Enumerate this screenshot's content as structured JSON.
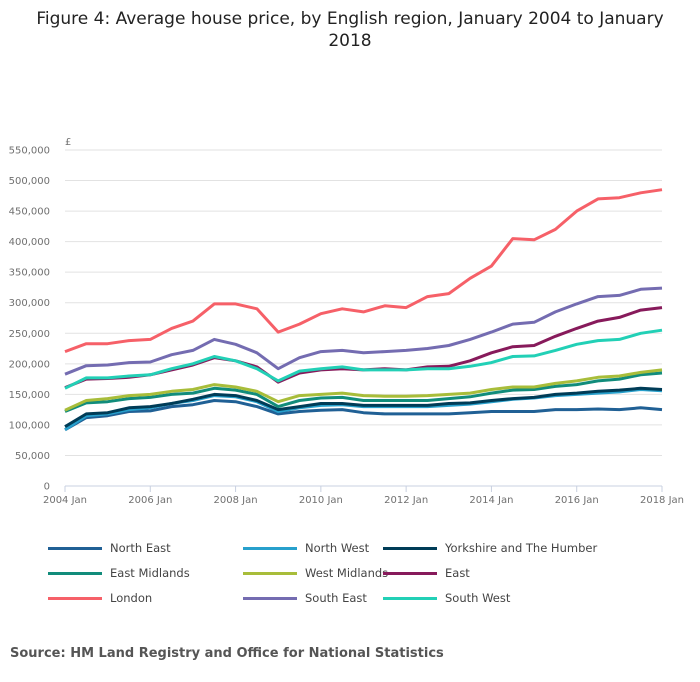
{
  "chart_data": {
    "type": "line",
    "title": "Figure 4: Average house price, by English region, January 2004 to January 2018",
    "ylabel": "£",
    "xlabel": "",
    "ylim": [
      0,
      550000
    ],
    "xlim": [
      2004,
      2018
    ],
    "yticks": [
      "0",
      "50,000",
      "100,000",
      "150,000",
      "200,000",
      "250,000",
      "300,000",
      "350,000",
      "400,000",
      "450,000",
      "500,000",
      "550,000"
    ],
    "xticks": [
      "2004 Jan",
      "2006 Jan",
      "2008 Jan",
      "2010 Jan",
      "2012 Jan",
      "2014 Jan",
      "2016 Jan",
      "2018 Jan"
    ],
    "grid": true,
    "legend_placement": "bottom",
    "x_step_years": 0.5,
    "series": [
      {
        "name": "North East",
        "color": "#206095",
        "values": [
          92,
          112,
          115,
          122,
          123,
          130,
          133,
          140,
          138,
          130,
          118,
          122,
          124,
          125,
          120,
          118,
          118,
          118,
          118,
          120,
          122,
          122,
          122,
          125,
          125,
          126,
          125,
          128,
          125
        ]
      },
      {
        "name": "North West",
        "color": "#27a0cc",
        "values": [
          92,
          115,
          118,
          125,
          128,
          135,
          140,
          148,
          146,
          138,
          122,
          128,
          132,
          133,
          130,
          130,
          130,
          130,
          132,
          134,
          138,
          142,
          144,
          148,
          150,
          152,
          154,
          158,
          156
        ]
      },
      {
        "name": "Yorkshire and The Humber",
        "color": "#003c57",
        "values": [
          97,
          118,
          120,
          128,
          130,
          135,
          142,
          150,
          148,
          140,
          125,
          130,
          135,
          135,
          132,
          132,
          132,
          132,
          135,
          136,
          140,
          143,
          145,
          150,
          152,
          155,
          157,
          160,
          158
        ]
      },
      {
        "name": "East Midlands",
        "color": "#118c7b",
        "values": [
          122,
          136,
          138,
          143,
          145,
          150,
          152,
          160,
          157,
          150,
          130,
          140,
          144,
          145,
          140,
          140,
          140,
          140,
          143,
          146,
          152,
          157,
          158,
          163,
          166,
          172,
          175,
          182,
          185
        ]
      },
      {
        "name": "West Midlands",
        "color": "#a8bd3a",
        "values": [
          124,
          140,
          143,
          148,
          150,
          155,
          158,
          166,
          162,
          155,
          138,
          148,
          150,
          152,
          148,
          147,
          147,
          148,
          150,
          152,
          158,
          162,
          162,
          168,
          172,
          178,
          180,
          186,
          190
        ]
      },
      {
        "name": "East",
        "color": "#871a5b",
        "values": [
          161,
          175,
          176,
          178,
          182,
          190,
          198,
          210,
          205,
          195,
          170,
          185,
          190,
          192,
          190,
          192,
          190,
          195,
          196,
          205,
          218,
          228,
          230,
          245,
          258,
          270,
          276,
          288,
          292
        ]
      },
      {
        "name": "London",
        "color": "#f66068",
        "values": [
          220,
          233,
          233,
          238,
          240,
          258,
          270,
          298,
          298,
          290,
          252,
          265,
          282,
          290,
          285,
          295,
          292,
          310,
          315,
          340,
          360,
          405,
          403,
          420,
          450,
          470,
          472,
          480,
          485
        ]
      },
      {
        "name": "South East",
        "color": "#746cb1",
        "values": [
          183,
          197,
          198,
          202,
          203,
          215,
          222,
          240,
          232,
          218,
          192,
          210,
          220,
          222,
          218,
          220,
          222,
          225,
          230,
          240,
          252,
          265,
          268,
          285,
          298,
          310,
          312,
          322,
          324
        ]
      },
      {
        "name": "South West",
        "color": "#22d0b6",
        "values": [
          160,
          177,
          177,
          180,
          182,
          192,
          200,
          212,
          205,
          192,
          172,
          188,
          192,
          195,
          190,
          190,
          190,
          192,
          192,
          196,
          202,
          212,
          213,
          222,
          232,
          238,
          240,
          250,
          255
        ]
      }
    ],
    "value_unit": "thousands GBP"
  },
  "source": "Source: HM Land Registry and Office for National Statistics"
}
